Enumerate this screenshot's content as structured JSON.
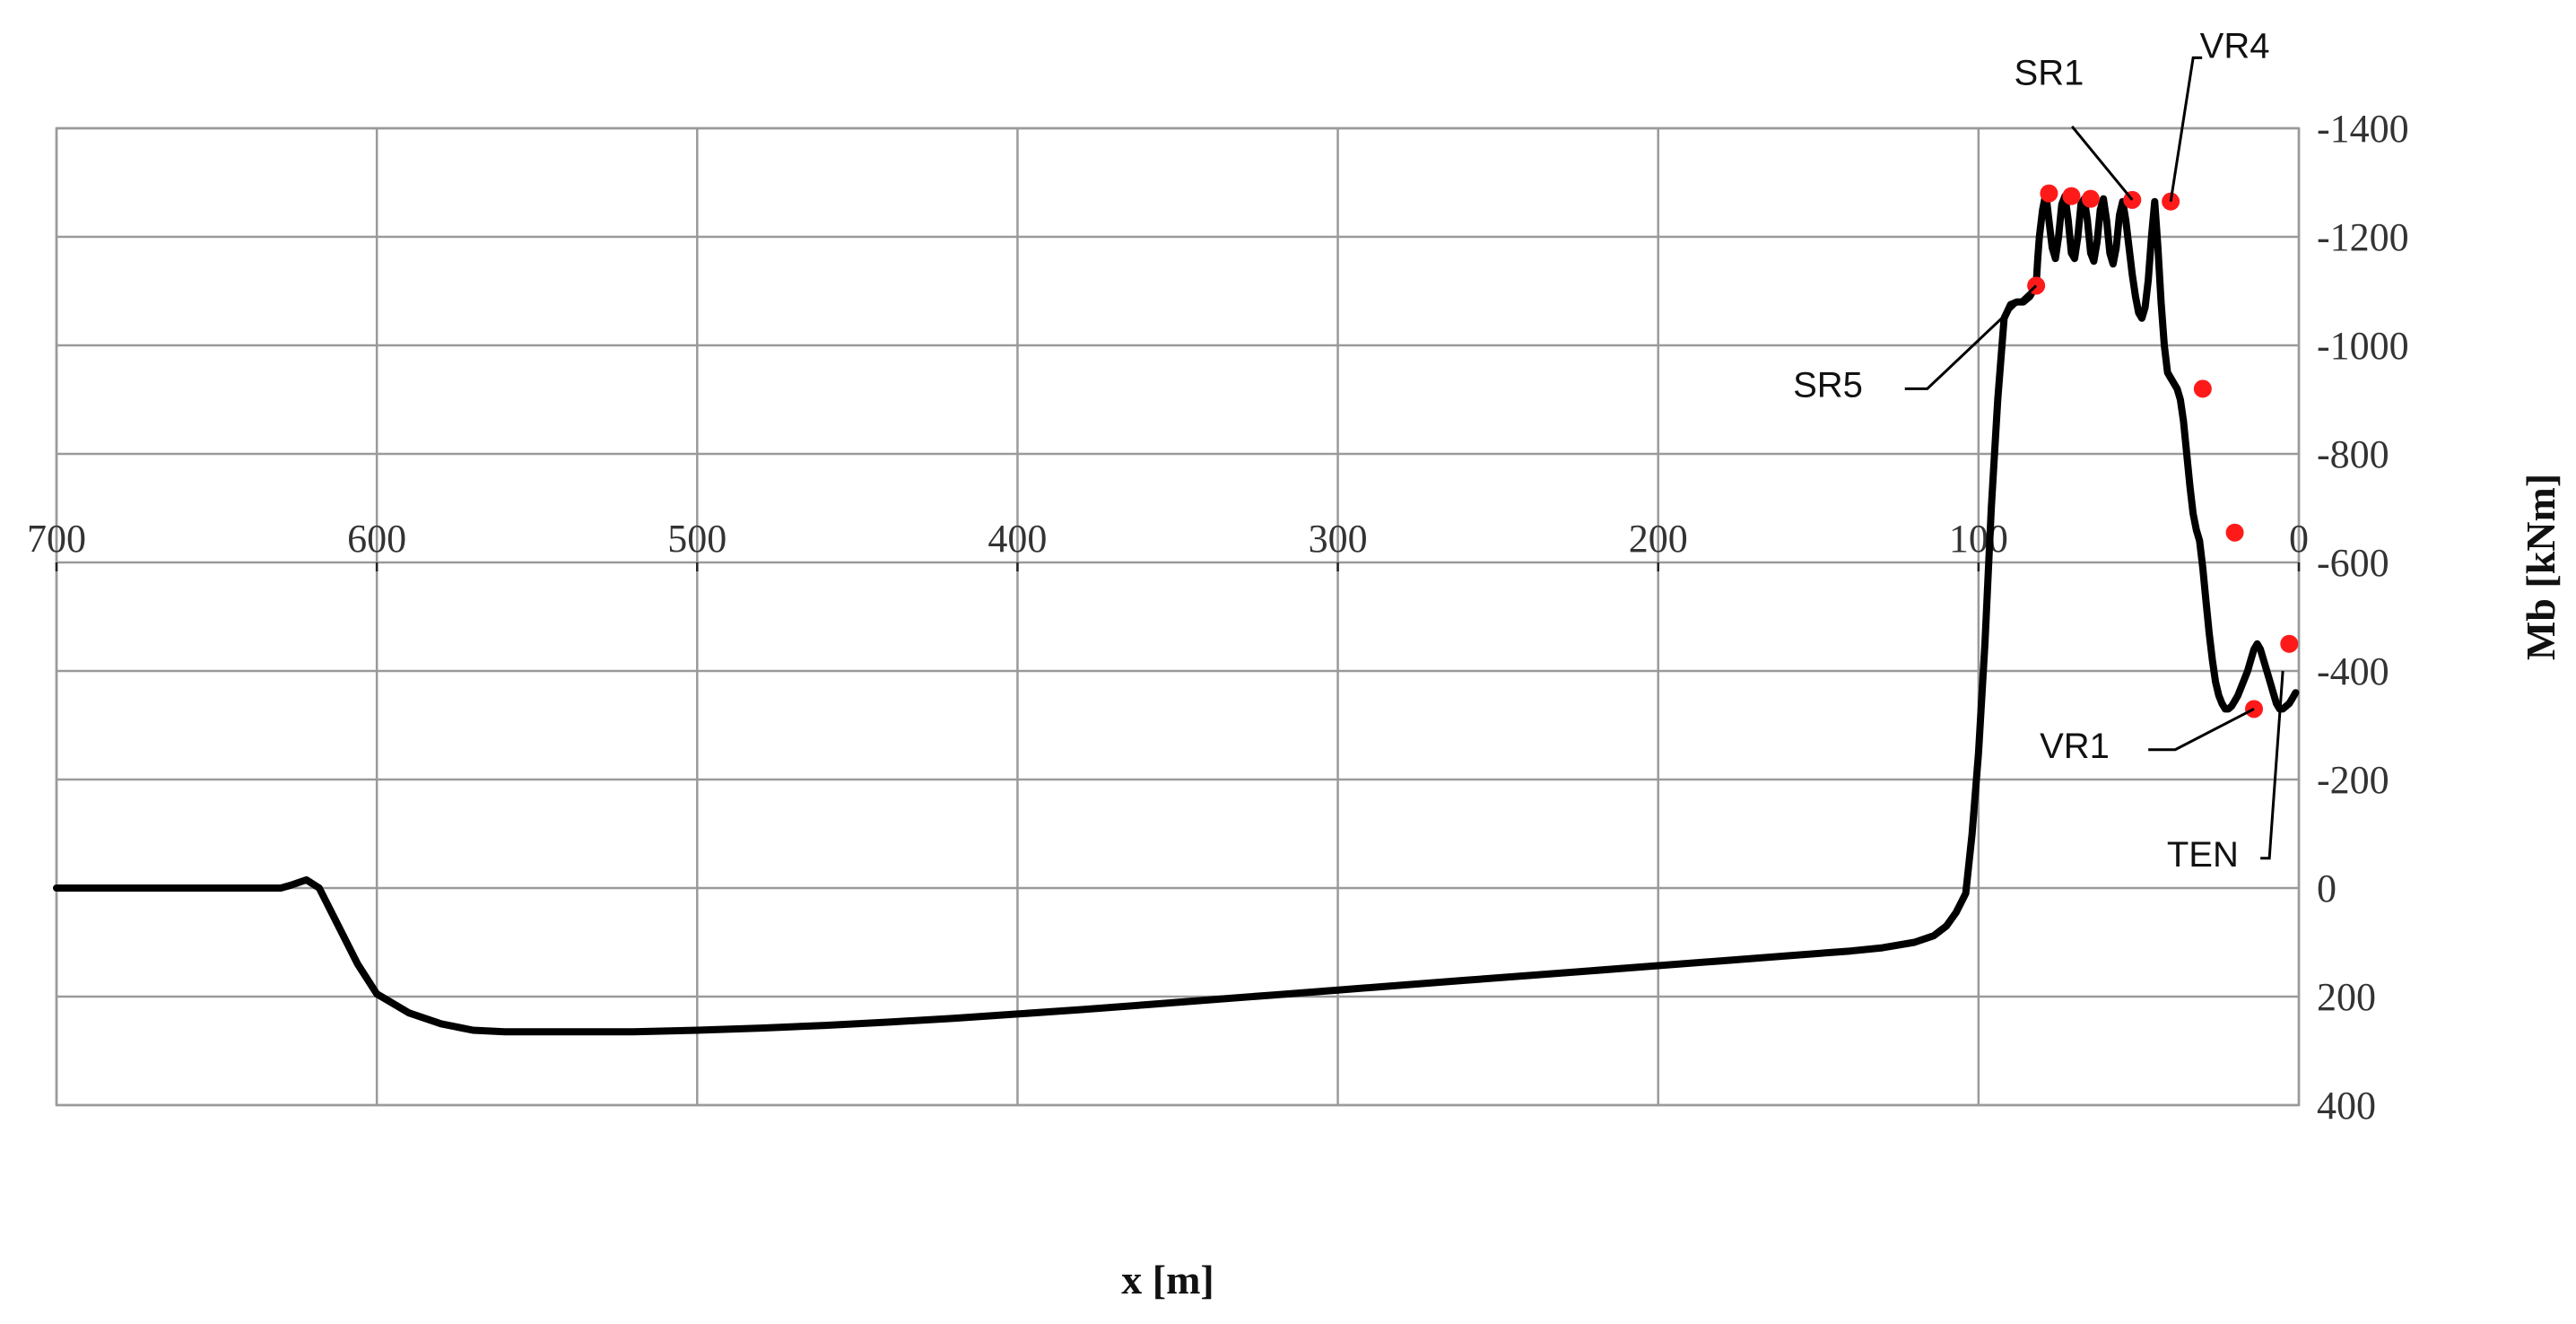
{
  "chart_data": {
    "type": "line",
    "title": "",
    "xlabel": "x [m]",
    "ylabel": "Mb [kNm]",
    "xlim": [
      700,
      0
    ],
    "ylim": [
      400,
      -1400
    ],
    "x_reversed": true,
    "y_reversed": true,
    "grid": true,
    "x_ticks": [
      700,
      600,
      500,
      400,
      300,
      200,
      100,
      0
    ],
    "y_ticks": [
      -1400,
      -1200,
      -1000,
      -800,
      -600,
      -400,
      -200,
      0,
      200,
      400
    ],
    "x_tick_labels": [
      "700",
      "600",
      "500",
      "400",
      "300",
      "200",
      "100",
      "0"
    ],
    "y_tick_labels": [
      "-1400",
      "-1200",
      "-1000",
      "-800",
      "-600",
      "-400",
      "-200",
      "0",
      "200",
      "400"
    ],
    "series": [
      {
        "color": "#000000",
        "x": [
          700,
          680,
          660,
          640,
          630,
          627,
          622,
          618,
          612,
          606,
          600,
          590,
          580,
          570,
          560,
          540,
          520,
          500,
          480,
          460,
          440,
          420,
          400,
          380,
          360,
          340,
          320,
          300,
          280,
          260,
          240,
          220,
          200,
          180,
          160,
          140,
          130,
          120,
          114,
          110,
          107,
          104,
          102,
          100,
          98,
          96,
          94,
          92,
          90,
          88,
          86,
          85,
          84,
          83,
          82,
          81.5,
          81,
          80,
          79,
          78,
          77,
          76,
          75,
          74,
          73,
          72,
          71,
          70,
          69,
          68,
          67,
          66,
          65,
          64,
          63,
          62,
          61,
          60,
          59,
          58,
          57,
          56,
          55,
          54,
          53,
          52,
          51,
          50,
          49,
          48,
          47,
          46,
          45,
          44,
          43,
          42,
          41,
          40,
          39,
          38,
          37,
          36,
          35,
          34,
          33,
          32,
          31,
          30,
          29,
          28,
          27,
          26,
          25,
          24,
          23,
          22,
          21,
          20,
          19,
          18,
          17,
          16,
          15,
          14,
          13,
          12,
          11,
          10,
          9,
          8,
          7,
          6,
          5,
          4,
          3,
          2,
          1
        ],
        "y": [
          0,
          0,
          0,
          0,
          0,
          -5,
          -15,
          0,
          70,
          140,
          195,
          230,
          250,
          262,
          265,
          265,
          265,
          262,
          258,
          253,
          247,
          240,
          232,
          224,
          215,
          206,
          197,
          188,
          179,
          170,
          161,
          152,
          143,
          134,
          125,
          116,
          110,
          100,
          88,
          70,
          45,
          10,
          -100,
          -250,
          -450,
          -700,
          -900,
          -1050,
          -1075,
          -1080,
          -1080,
          -1085,
          -1090,
          -1100,
          -1110,
          -1160,
          -1200,
          -1250,
          -1280,
          -1230,
          -1180,
          -1160,
          -1200,
          -1260,
          -1275,
          -1230,
          -1170,
          -1160,
          -1200,
          -1260,
          -1270,
          -1230,
          -1170,
          -1155,
          -1190,
          -1250,
          -1270,
          -1230,
          -1170,
          -1150,
          -1180,
          -1240,
          -1265,
          -1230,
          -1180,
          -1130,
          -1090,
          -1060,
          -1050,
          -1070,
          -1120,
          -1200,
          -1265,
          -1180,
          -1080,
          -1000,
          -950,
          -940,
          -930,
          -920,
          -900,
          -860,
          -800,
          -740,
          -690,
          -660,
          -640,
          -590,
          -530,
          -470,
          -420,
          -380,
          -355,
          -340,
          -330,
          -330,
          -335,
          -345,
          -355,
          -370,
          -385,
          -400,
          -420,
          -440,
          -450,
          -440,
          -420,
          -400,
          -380,
          -360,
          -340,
          -330,
          -330,
          -335,
          -340,
          -350,
          -360
        ],
        "markers": [
          {
            "x": 82,
            "y": -1110
          },
          {
            "x": 78,
            "y": -1280
          },
          {
            "x": 71,
            "y": -1275
          },
          {
            "x": 65,
            "y": -1270
          },
          {
            "x": 52,
            "y": -1268
          },
          {
            "x": 40,
            "y": -1265
          },
          {
            "x": 30,
            "y": -920
          },
          {
            "x": 20,
            "y": -655
          },
          {
            "x": 14,
            "y": -330
          },
          {
            "x": 3,
            "y": -450
          }
        ]
      }
    ],
    "annotations": [
      {
        "text": "SR1",
        "target": {
          "x": 52,
          "y": -1268
        }
      },
      {
        "text": "VR4",
        "target": {
          "x": 40,
          "y": -1265
        }
      },
      {
        "text": "SR5",
        "target": {
          "x": 82,
          "y": -1110
        }
      },
      {
        "text": "VR1",
        "target": {
          "x": 14,
          "y": -330
        }
      },
      {
        "text": "TEN",
        "target": {
          "x": 5,
          "y": -400
        }
      }
    ],
    "marker_color": "#ff1a1a"
  }
}
